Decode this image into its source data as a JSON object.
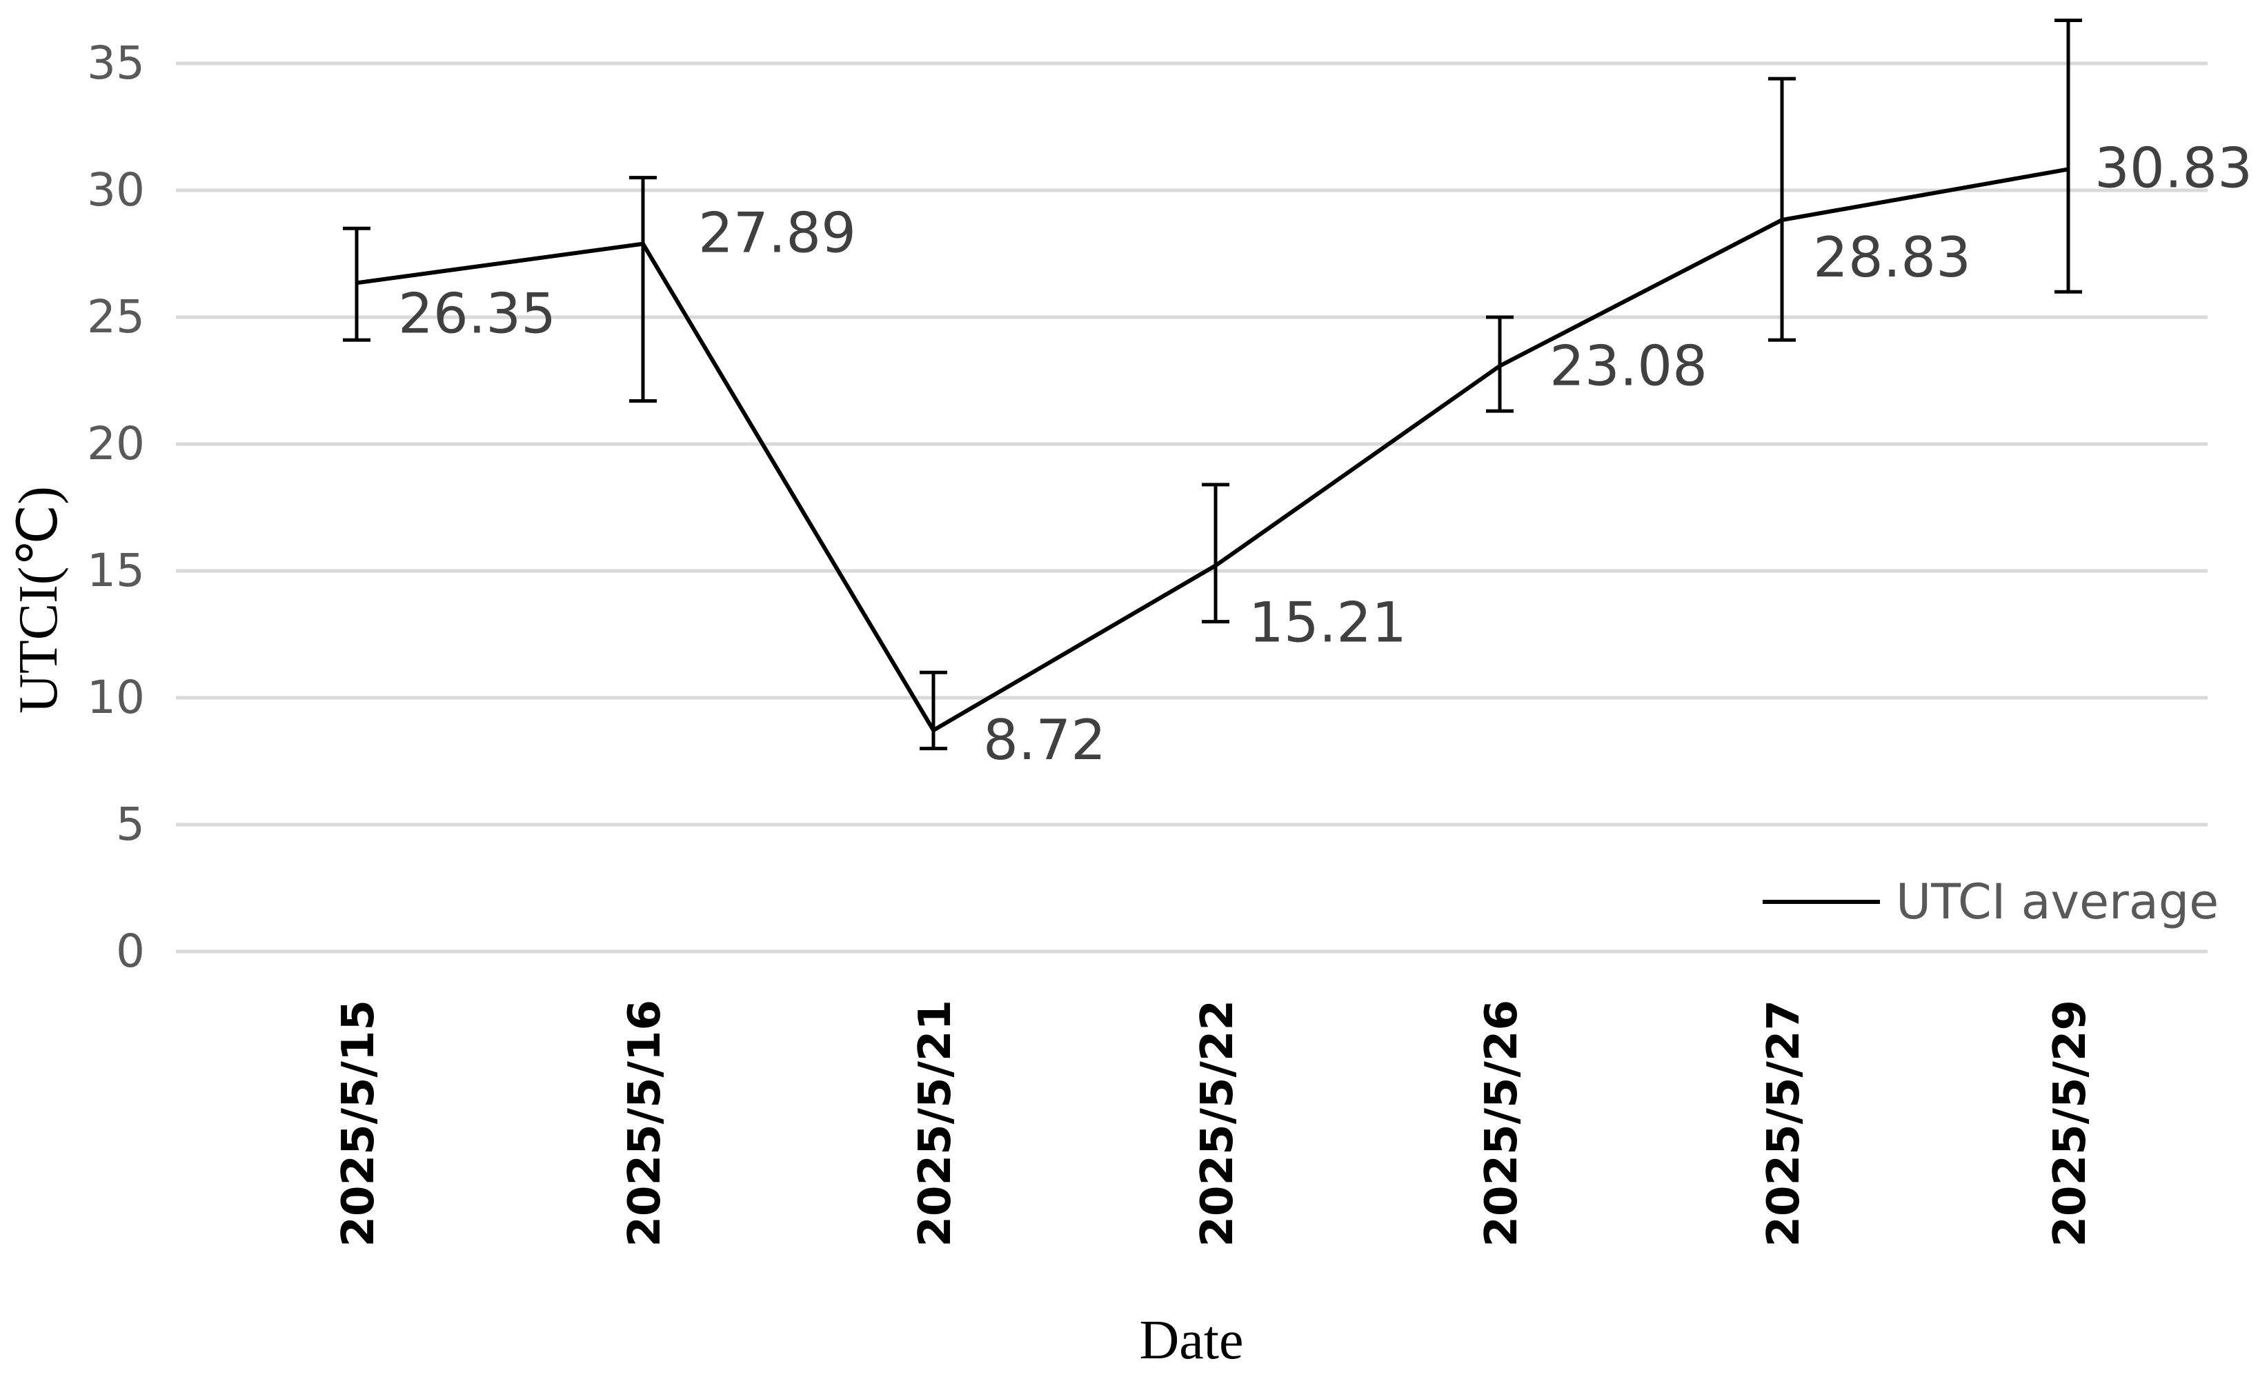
{
  "chart_data": {
    "type": "line",
    "xlabel": "Date",
    "ylabel": "UTCI(℃)",
    "categories": [
      "2025/5/15",
      "2025/5/16",
      "2025/5/21",
      "2025/5/22",
      "2025/5/26",
      "2025/5/27",
      "2025/5/29"
    ],
    "series": [
      {
        "name": "UTCI average",
        "values": [
          26.35,
          27.89,
          8.72,
          15.21,
          23.08,
          28.83,
          30.83
        ],
        "labels": [
          "26.35",
          "27.89",
          "8.72",
          "15.21",
          "23.08",
          "28.83",
          "30.83"
        ],
        "error_upper": [
          28.5,
          30.5,
          11.0,
          18.4,
          25.0,
          34.4,
          36.7
        ],
        "error_lower": [
          24.1,
          21.7,
          8.0,
          13.0,
          21.3,
          24.1,
          26.0
        ],
        "color": "#000000"
      }
    ],
    "yticks": [
      "0",
      "5",
      "10",
      "15",
      "20",
      "25",
      "30",
      "35"
    ],
    "ylim": [
      0,
      35
    ],
    "grid": true,
    "legend": "bottom-right"
  }
}
